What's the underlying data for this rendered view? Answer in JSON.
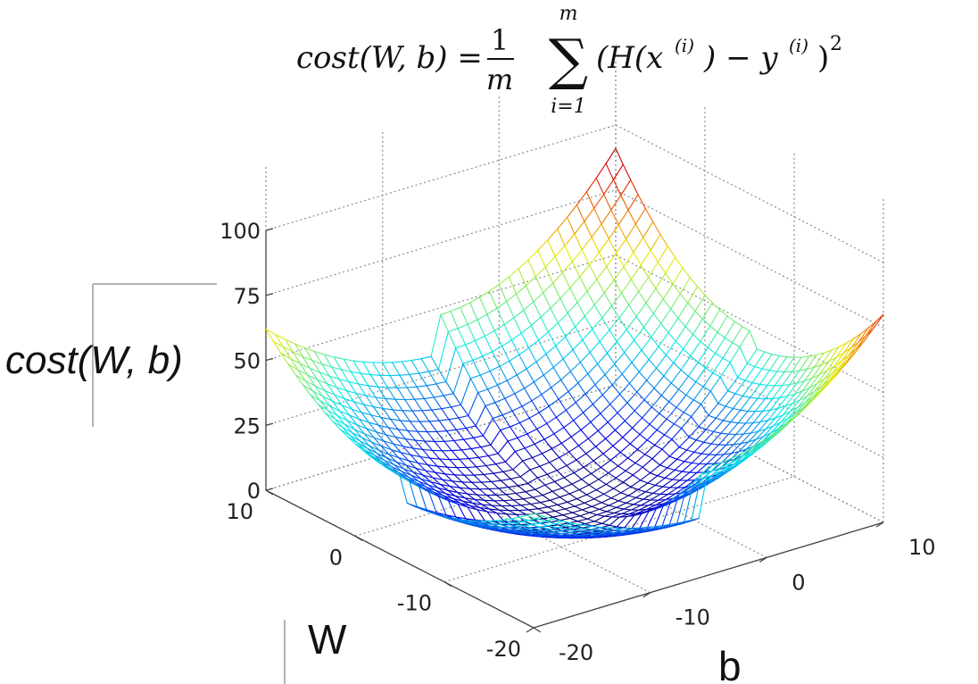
{
  "formula": {
    "lhs": "cost(W, b) =",
    "frac_num": "1",
    "frac_den": "m",
    "sum_sym": "∑",
    "sum_upper": "m",
    "sum_lower": "i=1",
    "body_a": "(H(x",
    "sup_a": "(i)",
    "body_b": ") − y",
    "sup_b": "(i)",
    "body_c": ")",
    "sup_c": "2"
  },
  "labels": {
    "zlabel": "cost(W, b)",
    "wlabel": "W",
    "blabel": "b"
  },
  "chart_data": {
    "type": "surface",
    "title": "cost(W, b) = 1/m Σ (H(x(i)) − y(i))²",
    "xlabel": "b",
    "ylabel": "W",
    "zlabel": "cost(W, b)",
    "x_range": [
      -20,
      10
    ],
    "y_range": [
      -20,
      10
    ],
    "z_range": [
      0,
      100
    ],
    "z_ticks": [
      "0",
      "25",
      "50",
      "75",
      "100"
    ],
    "w_ticks": [
      "10",
      "0",
      "-10",
      "-20"
    ],
    "b_ticks": [
      "-20",
      "-10",
      "0",
      "10"
    ],
    "grid": true,
    "colormap": "jet",
    "corner_values": [
      {
        "W": -20,
        "b": -20,
        "cost": 44
      },
      {
        "W": -20,
        "b": 10,
        "cost": 80
      },
      {
        "W": 10,
        "b": -20,
        "cost": 62
      },
      {
        "W": 10,
        "b": 10,
        "cost": 91
      }
    ],
    "minimum": {
      "W": -5,
      "b": -5,
      "cost": 0
    }
  }
}
